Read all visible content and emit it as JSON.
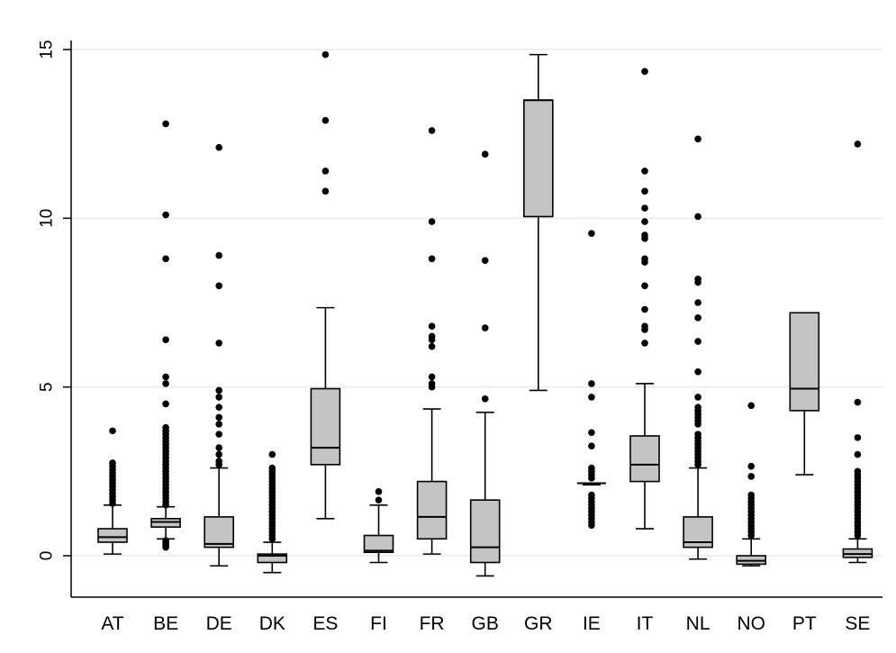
{
  "chart_data": {
    "type": "box",
    "title": "",
    "xlabel": "",
    "ylabel": "",
    "ylim": [
      -1.2,
      16.1
    ],
    "yticks": [
      0,
      5,
      10,
      15
    ],
    "ytick_labels": [
      "0",
      "5",
      "10",
      "15"
    ],
    "grid": true,
    "categories": [
      "AT",
      "BE",
      "DE",
      "DK",
      "ES",
      "FI",
      "FR",
      "GB",
      "GR",
      "IE",
      "IT",
      "NL",
      "NO",
      "PT",
      "SE"
    ],
    "boxes": [
      {
        "category": "AT",
        "whisker_low": 0.05,
        "q1": 0.4,
        "median": 0.55,
        "q3": 0.8,
        "whisker_high": 1.5,
        "outliers": [
          3.7,
          2.75,
          2.65,
          2.55,
          2.45,
          2.35,
          2.25,
          2.15,
          2.05,
          1.95,
          1.85,
          1.75,
          1.65,
          1.55
        ]
      },
      {
        "category": "BE",
        "whisker_low": 0.5,
        "q1": 0.85,
        "median": 1.0,
        "q3": 1.1,
        "whisker_high": 1.45,
        "outliers": [
          12.8,
          10.1,
          8.8,
          6.4,
          5.3,
          5.1,
          4.5,
          3.8,
          3.7,
          3.6,
          3.5,
          3.4,
          3.3,
          3.2,
          3.1,
          3.0,
          2.9,
          2.8,
          2.7,
          2.6,
          2.5,
          2.4,
          2.3,
          2.2,
          2.1,
          2.0,
          1.9,
          1.8,
          1.7,
          1.6,
          1.5,
          0.45,
          0.4,
          0.35,
          0.3,
          0.25
        ]
      },
      {
        "category": "DE",
        "whisker_low": -0.3,
        "q1": 0.25,
        "median": 0.35,
        "q3": 1.15,
        "whisker_high": 2.6,
        "outliers": [
          12.1,
          8.9,
          8.0,
          6.3,
          4.9,
          4.7,
          4.4,
          4.1,
          3.9,
          3.6,
          3.2,
          3.0,
          2.8,
          2.7
        ]
      },
      {
        "category": "DK",
        "whisker_low": -0.5,
        "q1": -0.2,
        "median": 0.0,
        "q3": 0.05,
        "whisker_high": 0.4,
        "outliers": [
          3.0,
          2.6,
          2.5,
          2.4,
          2.3,
          2.2,
          2.1,
          2.0,
          1.9,
          1.8,
          1.7,
          1.6,
          1.5,
          1.4,
          1.3,
          1.2,
          1.1,
          1.0,
          0.9,
          0.8,
          0.7,
          0.6,
          0.5
        ]
      },
      {
        "category": "ES",
        "whisker_low": 1.1,
        "q1": 2.7,
        "median": 3.2,
        "q3": 4.95,
        "whisker_high": 7.35,
        "outliers": [
          14.85,
          12.9,
          11.4,
          10.8
        ]
      },
      {
        "category": "FI",
        "whisker_low": -0.2,
        "q1": 0.1,
        "median": 0.15,
        "q3": 0.6,
        "whisker_high": 1.5,
        "outliers": [
          1.9,
          1.65
        ]
      },
      {
        "category": "FR",
        "whisker_low": 0.05,
        "q1": 0.5,
        "median": 1.15,
        "q3": 2.2,
        "whisker_high": 4.35,
        "outliers": [
          12.6,
          9.9,
          8.8,
          6.8,
          6.5,
          6.4,
          6.2,
          5.3,
          5.1,
          5.0
        ]
      },
      {
        "category": "GB",
        "whisker_low": -0.6,
        "q1": -0.2,
        "median": 0.25,
        "q3": 1.65,
        "whisker_high": 4.25,
        "outliers": [
          11.9,
          8.75,
          6.75,
          4.65
        ]
      },
      {
        "category": "GR",
        "whisker_low": 4.9,
        "q1": 10.05,
        "median": 13.5,
        "q3": 13.5,
        "whisker_high": 14.85,
        "outliers": []
      },
      {
        "category": "IE",
        "whisker_low": 2.1,
        "q1": 2.15,
        "median": 2.15,
        "q3": 2.15,
        "whisker_high": 2.15,
        "outliers": [
          9.55,
          5.1,
          4.7,
          3.65,
          3.25,
          2.6,
          2.5,
          2.4,
          2.3,
          1.8,
          1.7,
          1.6,
          1.5,
          1.4,
          1.3,
          1.2,
          1.1,
          1.0,
          0.9
        ]
      },
      {
        "category": "IT",
        "whisker_low": 0.8,
        "q1": 2.2,
        "median": 2.7,
        "q3": 3.55,
        "whisker_high": 5.1,
        "outliers": [
          14.35,
          11.4,
          10.8,
          10.3,
          9.9,
          9.5,
          9.4,
          8.8,
          8.7,
          8.0,
          7.3,
          6.8,
          6.7,
          6.3
        ]
      },
      {
        "category": "NL",
        "whisker_low": -0.1,
        "q1": 0.25,
        "median": 0.4,
        "q3": 1.15,
        "whisker_high": 2.6,
        "outliers": [
          12.35,
          10.05,
          8.2,
          8.1,
          7.5,
          7.05,
          6.35,
          5.45,
          4.7,
          4.4,
          4.3,
          4.2,
          4.1,
          4.0,
          3.9,
          3.6,
          3.5,
          3.4,
          3.3,
          3.2,
          3.1,
          3.0,
          2.9,
          2.8,
          2.7
        ]
      },
      {
        "category": "NO",
        "whisker_low": -0.3,
        "q1": -0.25,
        "median": -0.15,
        "q3": 0.0,
        "whisker_high": 0.5,
        "outliers": [
          4.45,
          2.65,
          2.35,
          1.8,
          1.7,
          1.6,
          1.5,
          1.4,
          1.3,
          1.2,
          1.1,
          1.0,
          0.9,
          0.8,
          0.7,
          0.6
        ]
      },
      {
        "category": "PT",
        "whisker_low": 2.4,
        "q1": 4.3,
        "median": 4.95,
        "q3": 7.2,
        "whisker_high": 7.2,
        "outliers": []
      },
      {
        "category": "SE",
        "whisker_low": -0.2,
        "q1": -0.05,
        "median": 0.05,
        "q3": 0.2,
        "whisker_high": 0.5,
        "outliers": [
          12.2,
          4.55,
          3.5,
          3.0,
          2.5,
          2.4,
          2.3,
          2.2,
          2.1,
          2.0,
          1.9,
          1.8,
          1.7,
          1.6,
          1.5,
          1.4,
          1.3,
          1.2,
          1.1,
          1.0,
          0.9,
          0.8,
          0.7,
          0.6
        ]
      }
    ]
  }
}
